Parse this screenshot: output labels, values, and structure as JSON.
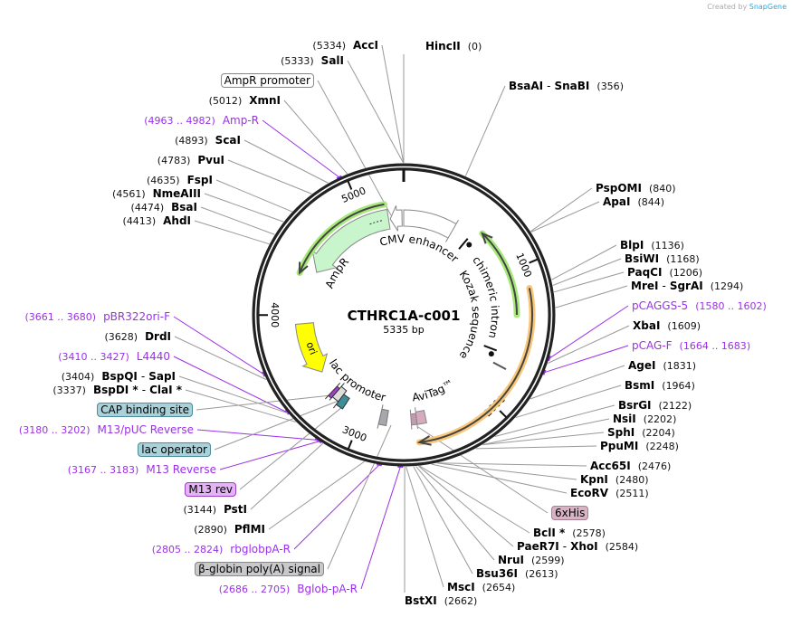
{
  "credit": {
    "prefix": "Created by",
    "brand": "SnapGene"
  },
  "plasmid": {
    "name": "CTHRC1A-c001",
    "length": "5335 bp",
    "total_bp": 5335
  },
  "ticks": [
    "1000",
    "2000",
    "3000",
    "4000",
    "5000"
  ],
  "features": {
    "cmv": "CMV enhancer",
    "ampr": "AmpR",
    "ori": "ori",
    "lac": "lac promoter",
    "avitag": "AviTag™",
    "intron": "chimeric intron",
    "kozak": "Kozak sequence"
  },
  "colors": {
    "primer": "#9b30ea",
    "ampr": "#c8f5cc",
    "ori": "#ffff00",
    "intron": "#a6e87a",
    "orf": "#f9c77a"
  },
  "labels": [
    {
      "kind": "enzyme",
      "pos": "5334",
      "name": "AccI"
    },
    {
      "kind": "enzyme",
      "pos": "5333",
      "name": "SalI"
    },
    {
      "kind": "feature",
      "name": "AmpR promoter",
      "color": "#ffffff",
      "border": "#888888"
    },
    {
      "kind": "enzyme",
      "pos": "5012",
      "name": "XmnI"
    },
    {
      "kind": "primer",
      "pos": "4963 .. 4982",
      "name": "Amp-R"
    },
    {
      "kind": "enzyme",
      "pos": "4893",
      "name": "ScaI"
    },
    {
      "kind": "enzyme",
      "pos": "4783",
      "name": "PvuI"
    },
    {
      "kind": "enzyme",
      "pos": "4635",
      "name": "FspI"
    },
    {
      "kind": "enzyme",
      "pos": "4561",
      "name": "NmeAIII"
    },
    {
      "kind": "enzyme",
      "pos": "4474",
      "name": "BsaI"
    },
    {
      "kind": "enzyme",
      "pos": "4413",
      "name": "AhdI"
    },
    {
      "kind": "primer",
      "pos": "3661 .. 3680",
      "name": "pBR322ori-F"
    },
    {
      "kind": "enzyme",
      "pos": "3628",
      "name": "DrdI"
    },
    {
      "kind": "primer",
      "pos": "3410 .. 3427",
      "name": "L4440"
    },
    {
      "kind": "enzyme",
      "pos": "3404",
      "name": "BspQI",
      "name2": "SapI"
    },
    {
      "kind": "enzyme",
      "pos": "3337",
      "name": "BspDI *",
      "name2": "ClaI *"
    },
    {
      "kind": "feature",
      "name": "CAP binding site",
      "color": "#a9d1da",
      "border": "#4a8e9c"
    },
    {
      "kind": "primer",
      "pos": "3180 .. 3202",
      "name": "M13/pUC Reverse"
    },
    {
      "kind": "feature",
      "name": "lac operator",
      "color": "#a9d1da",
      "border": "#4a8e9c"
    },
    {
      "kind": "primer",
      "pos": "3167 .. 3183",
      "name": "M13 Reverse"
    },
    {
      "kind": "feature",
      "name": "M13 rev",
      "color": "#e3b3f5",
      "border": "#a040c8"
    },
    {
      "kind": "enzyme",
      "pos": "3144",
      "name": "PstI"
    },
    {
      "kind": "enzyme",
      "pos": "2890",
      "name": "PflMI"
    },
    {
      "kind": "primer",
      "pos": "2805 .. 2824",
      "name": "rbglobpA-R"
    },
    {
      "kind": "feature",
      "name": "β-globin poly(A) signal",
      "color": "#c9c9cc",
      "border": "#888888"
    },
    {
      "kind": "primer",
      "pos": "2686 .. 2705",
      "name": "Bglob-pA-R"
    },
    {
      "kind": "enzyme",
      "pos": "0",
      "name": "HincII"
    },
    {
      "kind": "enzyme",
      "pos": "356",
      "name": "BsaAI",
      "name2": "SnaBI"
    },
    {
      "kind": "enzyme",
      "pos": "840",
      "name": "PspOMI"
    },
    {
      "kind": "enzyme",
      "pos": "844",
      "name": "ApaI"
    },
    {
      "kind": "enzyme",
      "pos": "1136",
      "name": "BlpI"
    },
    {
      "kind": "enzyme",
      "pos": "1168",
      "name": "BsiWI"
    },
    {
      "kind": "enzyme",
      "pos": "1206",
      "name": "PaqCI"
    },
    {
      "kind": "enzyme",
      "pos": "1294",
      "name": "MreI",
      "name2": "SgrAI"
    },
    {
      "kind": "primer",
      "pos": "1580 .. 1602",
      "name": "pCAGGS-5"
    },
    {
      "kind": "enzyme",
      "pos": "1609",
      "name": "XbaI"
    },
    {
      "kind": "primer",
      "pos": "1664 .. 1683",
      "name": "pCAG-F"
    },
    {
      "kind": "enzyme",
      "pos": "1831",
      "name": "AgeI"
    },
    {
      "kind": "enzyme",
      "pos": "1964",
      "name": "BsmI"
    },
    {
      "kind": "enzyme",
      "pos": "2122",
      "name": "BsrGI"
    },
    {
      "kind": "enzyme",
      "pos": "2202",
      "name": "NsiI"
    },
    {
      "kind": "enzyme",
      "pos": "2204",
      "name": "SphI"
    },
    {
      "kind": "enzyme",
      "pos": "2248",
      "name": "PpuMI"
    },
    {
      "kind": "enzyme",
      "pos": "2476",
      "name": "Acc65I"
    },
    {
      "kind": "enzyme",
      "pos": "2480",
      "name": "KpnI"
    },
    {
      "kind": "enzyme",
      "pos": "2511",
      "name": "EcoRV"
    },
    {
      "kind": "feature",
      "name": "6xHis",
      "color": "#d8b3c3",
      "border": "#a88090"
    },
    {
      "kind": "enzyme",
      "pos": "2578",
      "name": "BclI *"
    },
    {
      "kind": "enzyme",
      "pos": "2584",
      "name": "PaeR7I",
      "name2": "XhoI"
    },
    {
      "kind": "enzyme",
      "pos": "2599",
      "name": "NruI"
    },
    {
      "kind": "enzyme",
      "pos": "2613",
      "name": "Bsu36I"
    },
    {
      "kind": "enzyme",
      "pos": "2654",
      "name": "MscI"
    },
    {
      "kind": "enzyme",
      "pos": "2662",
      "name": "BstXI"
    }
  ]
}
